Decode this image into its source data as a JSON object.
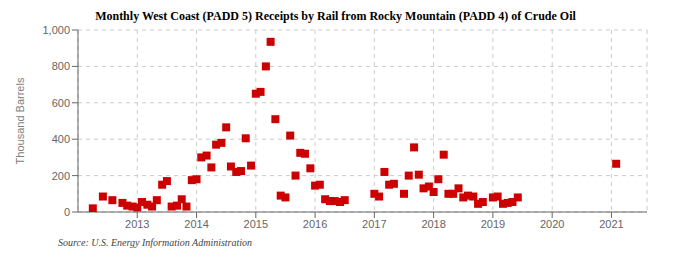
{
  "chart_data": {
    "type": "scatter",
    "title": "Monthly West Coast (PADD 5) Receipts by Rail from Rocky Mountain (PADD 4) of Crude Oil",
    "ylabel": "Thousand Barrels",
    "annotations": [
      "Source: U.S. Energy Information Administration"
    ],
    "color": "#cc0000",
    "marker": "square",
    "grid": true,
    "xlim": [
      2012.0,
      2021.6
    ],
    "xticks": [
      2013,
      2014,
      2015,
      2016,
      2017,
      2018,
      2019,
      2020,
      2021
    ],
    "ylim": [
      0,
      1000
    ],
    "yticks": [
      0,
      200,
      400,
      600,
      800,
      {
        "value": 1000,
        "label": "1,000"
      }
    ],
    "x": [
      2012.25,
      2012.42,
      2012.58,
      2012.75,
      2012.83,
      2012.92,
      2013.0,
      2013.08,
      2013.17,
      2013.25,
      2013.33,
      2013.42,
      2013.5,
      2013.58,
      2013.67,
      2013.75,
      2013.83,
      2013.92,
      2014.0,
      2014.08,
      2014.17,
      2014.25,
      2014.33,
      2014.42,
      2014.5,
      2014.58,
      2014.67,
      2014.75,
      2014.83,
      2014.92,
      2015.0,
      2015.08,
      2015.17,
      2015.25,
      2015.33,
      2015.42,
      2015.5,
      2015.58,
      2015.67,
      2015.75,
      2015.83,
      2015.92,
      2016.0,
      2016.08,
      2016.17,
      2016.25,
      2016.33,
      2016.42,
      2016.5,
      2017.0,
      2017.08,
      2017.17,
      2017.25,
      2017.33,
      2017.5,
      2017.58,
      2017.67,
      2017.75,
      2017.83,
      2017.92,
      2018.0,
      2018.08,
      2018.17,
      2018.25,
      2018.33,
      2018.42,
      2018.5,
      2018.58,
      2018.67,
      2018.75,
      2018.83,
      2019.0,
      2019.08,
      2019.17,
      2019.25,
      2019.33,
      2019.42,
      2021.08
    ],
    "values": [
      20,
      85,
      65,
      50,
      35,
      30,
      25,
      55,
      40,
      30,
      65,
      150,
      170,
      30,
      35,
      70,
      30,
      175,
      180,
      300,
      310,
      245,
      370,
      380,
      465,
      250,
      220,
      225,
      405,
      255,
      650,
      660,
      800,
      935,
      510,
      90,
      80,
      420,
      200,
      325,
      320,
      240,
      145,
      150,
      70,
      60,
      60,
      55,
      65,
      100,
      85,
      220,
      150,
      155,
      100,
      200,
      355,
      205,
      130,
      140,
      110,
      180,
      315,
      100,
      100,
      130,
      80,
      90,
      85,
      45,
      55,
      80,
      85,
      45,
      50,
      55,
      80,
      265
    ]
  }
}
